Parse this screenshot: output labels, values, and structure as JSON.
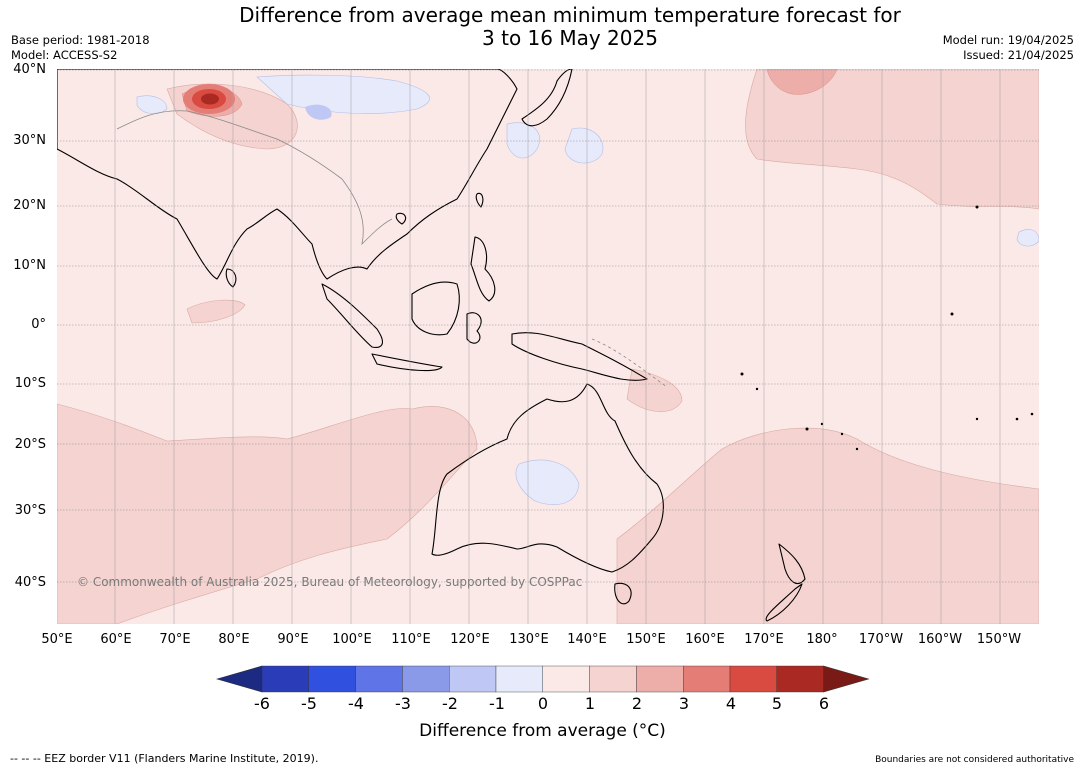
{
  "title_line1": "Difference from average mean minimum temperature forecast for",
  "title_line2": "3 to 16 May 2025",
  "meta_left": {
    "base_period": "Base period: 1981-2018",
    "model": "Model: ACCESS-S2"
  },
  "meta_right": {
    "model_run": "Model run: 19/04/2025",
    "issued": "Issued: 21/04/2025"
  },
  "lat_labels": [
    "40°N",
    "30°N",
    "20°N",
    "10°N",
    "0°",
    "10°S",
    "20°S",
    "30°S",
    "40°S"
  ],
  "lon_labels": [
    "50°E",
    "60°E",
    "70°E",
    "80°E",
    "90°E",
    "100°E",
    "110°E",
    "120°E",
    "130°E",
    "140°E",
    "150°E",
    "160°E",
    "170°E",
    "180°",
    "170°W",
    "160°W",
    "150°W"
  ],
  "copyright": "© Commonwealth of Australia 2025, Bureau of Meteorology, supported by COSPPac",
  "colorbar": {
    "ticks": [
      "-6",
      "-5",
      "-4",
      "-3",
      "-2",
      "-1",
      "0",
      "1",
      "2",
      "3",
      "4",
      "5",
      "6"
    ],
    "colors": [
      "#1c2a82",
      "#2a3cb8",
      "#3050e0",
      "#5f74e6",
      "#8a9ae9",
      "#bfc8f4",
      "#e6eafb",
      "#fbe9e7",
      "#f4d3d0",
      "#edaeaa",
      "#e57d77",
      "#d94a40",
      "#aa2923",
      "#7a1a16"
    ],
    "label": "Difference from average (°C)"
  },
  "footer_left": "-- -- -- EEZ border V11 (Flanders Marine Institute, 2019).",
  "footer_right": "Boundaries are not considered authoritative"
}
